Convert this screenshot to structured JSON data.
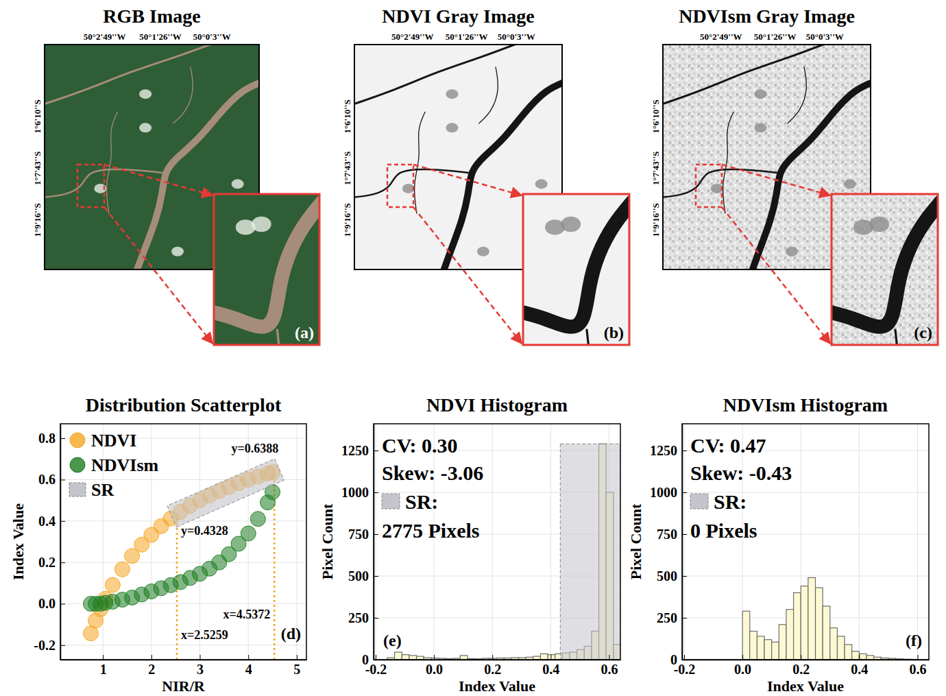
{
  "images": [
    {
      "type": "rgb",
      "title": "RGB Image",
      "letter": "(a)",
      "lon_labels": [
        "50°2'49''W",
        "50°1'26''W",
        "50°0'3''W"
      ],
      "lat_labels": [
        "1°6'10''S",
        "1°7'43''S",
        "1°9'16''S"
      ]
    },
    {
      "type": "gray",
      "title": "NDVI Gray Image",
      "letter": "(b)",
      "lon_labels": [
        "50°2'49''W",
        "50°1'26''W",
        "50°0'3''W"
      ],
      "lat_labels": [
        "1°6'10''S",
        "1°7'43''S",
        "1°9'16''S"
      ]
    },
    {
      "type": "gray-speckled",
      "title": "NDVIsm Gray Image",
      "letter": "(c)",
      "lon_labels": [
        "50°2'49''W",
        "50°1'26''W",
        "50°0'3''W"
      ],
      "lat_labels": [
        "1°6'10''S",
        "1°7'43''S",
        "1°9'16''S"
      ]
    }
  ],
  "chart_data": [
    {
      "type": "scatter",
      "title": "Distribution Scatterplot",
      "x_label": "NIR/R",
      "y_label": "Index Value",
      "letter": "(d)",
      "x": [
        0.75,
        0.85,
        0.95,
        1.05,
        1.2,
        1.4,
        1.6,
        1.8,
        2.0,
        2.2,
        2.4,
        2.6,
        2.8,
        3.0,
        3.2,
        3.4,
        3.6,
        3.8,
        4.0,
        4.2,
        4.4,
        4.5
      ],
      "series": [
        {
          "name": "NDVI",
          "color": "#f5a623",
          "values": [
            -0.143,
            -0.081,
            -0.026,
            0.024,
            0.091,
            0.167,
            0.231,
            0.286,
            0.333,
            0.375,
            0.412,
            0.444,
            0.474,
            0.5,
            0.524,
            0.545,
            0.565,
            0.583,
            0.6,
            0.615,
            0.63,
            0.636
          ]
        },
        {
          "name": "NDVIsm",
          "color": "#1e7d22",
          "values": [
            0,
            0,
            0,
            0.005,
            0.01,
            0.02,
            0.03,
            0.045,
            0.06,
            0.075,
            0.09,
            0.105,
            0.125,
            0.145,
            0.17,
            0.2,
            0.24,
            0.29,
            0.34,
            0.41,
            0.49,
            0.54
          ]
        }
      ],
      "sr_region": {
        "name": "SR",
        "color": "#c4c4cc",
        "x": [
          2.5259,
          4.5372
        ],
        "y": [
          0.4328,
          0.6388
        ]
      },
      "annotations": [
        "y=0.6388",
        "y=0.4328",
        "x=2.5259",
        "x=4.5372"
      ],
      "xlim": [
        0.12,
        5.2
      ],
      "xticks": [
        1,
        2,
        3,
        4,
        5
      ],
      "ylim": [
        -0.27,
        0.87
      ],
      "yticks": [
        -0.2,
        {
          "value": 0,
          "label": "0.0"
        },
        0.2,
        0.4,
        0.6,
        0.8
      ],
      "grid": true,
      "legend": "upper left",
      "marker": "circle"
    },
    {
      "type": "histogram",
      "title": "NDVI Histogram",
      "x_label": "Index Value",
      "y_label": "Pixel Count",
      "letter": "(e)",
      "bins": [
        -0.16,
        -0.135,
        -0.11,
        -0.085,
        -0.06,
        -0.035,
        -0.01,
        0.015,
        0.04,
        0.065,
        0.09,
        0.115,
        0.14,
        0.165,
        0.19,
        0.215,
        0.24,
        0.265,
        0.29,
        0.315,
        0.34,
        0.365,
        0.39,
        0.415,
        0.44,
        0.465,
        0.49,
        0.515,
        0.54,
        0.565,
        0.59,
        0.615,
        0.64
      ],
      "counts": [
        12,
        45,
        30,
        25,
        20,
        12,
        10,
        8,
        6,
        8,
        25,
        6,
        5,
        8,
        8,
        10,
        10,
        12,
        12,
        15,
        20,
        35,
        30,
        35,
        40,
        45,
        60,
        80,
        170,
        1290,
        1000,
        90
      ],
      "color": "#fdf9d3",
      "stats": [
        "CV: 0.30",
        "Skew: -3.06"
      ],
      "sr_label": "SR:",
      "sr_pixels": "2775 Pixels",
      "sr_region": {
        "color": "#c4c4cc",
        "x": [
          0.4328,
          0.6388
        ]
      },
      "xlim": [
        -0.207,
        0.6388
      ],
      "xticks": [
        -0.2,
        {
          "value": 0,
          "label": "0.0"
        },
        0.2,
        0.4,
        0.6
      ],
      "ylim": [
        0,
        1410
      ],
      "yticks": [
        0,
        250,
        500,
        750,
        1000,
        1250
      ],
      "grid": true
    },
    {
      "type": "histogram",
      "title": "NDVIsm Histogram",
      "x_label": "Index Value",
      "y_label": "Pixel Count",
      "letter": "(f)",
      "bins": [
        0,
        0.025,
        0.05,
        0.075,
        0.1,
        0.125,
        0.15,
        0.175,
        0.2,
        0.225,
        0.25,
        0.275,
        0.3,
        0.325,
        0.35,
        0.375,
        0.4,
        0.425,
        0.45,
        0.475,
        0.5,
        0.525,
        0.55,
        0.575,
        0.6
      ],
      "counts": [
        290,
        170,
        140,
        120,
        105,
        210,
        300,
        400,
        440,
        490,
        430,
        320,
        190,
        140,
        90,
        50,
        35,
        25,
        15,
        10,
        8,
        5,
        3,
        2
      ],
      "color": "#fdf9d3",
      "stats": [
        "CV: 0.47",
        "Skew: -0.43"
      ],
      "sr_label": "SR:",
      "sr_pixels": "0 Pixels",
      "sr_region": {
        "color": "#c4c4cc"
      },
      "xlim": [
        -0.207,
        0.6388
      ],
      "xticks": [
        -0.2,
        {
          "value": 0,
          "label": "0.0"
        },
        0.2,
        0.4,
        0.6
      ],
      "ylim": [
        0,
        1410
      ],
      "yticks": [
        0,
        250,
        500,
        750,
        1000,
        1250
      ],
      "grid": true
    }
  ]
}
